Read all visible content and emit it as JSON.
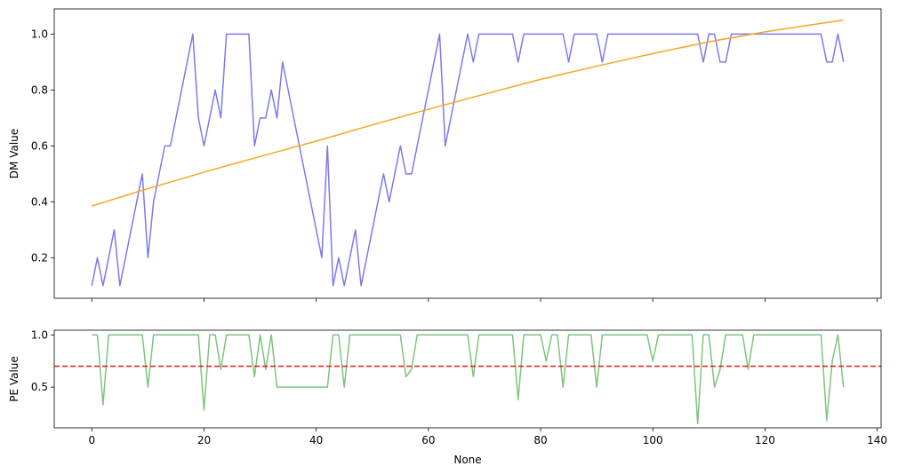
{
  "chart_data": [
    {
      "type": "line",
      "title": "",
      "xlabel": "",
      "ylabel": "DM Value",
      "xlim": [
        -6.7,
        140.7
      ],
      "ylim": [
        0.055,
        1.09
      ],
      "xticks": [
        0,
        20,
        40,
        60,
        80,
        100,
        120,
        140
      ],
      "yticks": [
        0.2,
        0.4,
        0.6,
        0.8,
        1.0
      ],
      "ytick_labels": [
        "0.2",
        "0.4",
        "0.6",
        "0.8",
        "1.0"
      ],
      "show_xtick_labels": false,
      "grid": false,
      "series": [
        {
          "color": "#7b7bf0",
          "x": [
            0,
            1,
            2,
            3,
            4,
            5,
            6,
            7,
            8,
            9,
            10,
            11,
            12,
            13,
            14,
            15,
            16,
            17,
            18,
            19,
            20,
            21,
            22,
            23,
            24,
            25,
            26,
            27,
            28,
            29,
            30,
            31,
            32,
            33,
            34,
            35,
            36,
            37,
            38,
            39,
            40,
            41,
            42,
            43,
            44,
            45,
            46,
            47,
            48,
            49,
            50,
            51,
            52,
            53,
            54,
            55,
            56,
            57,
            58,
            59,
            60,
            61,
            62,
            63,
            64,
            65,
            66,
            67,
            68,
            69,
            70,
            71,
            72,
            73,
            74,
            75,
            76,
            77,
            78,
            79,
            80,
            81,
            82,
            83,
            84,
            85,
            86,
            87,
            88,
            89,
            90,
            91,
            92,
            93,
            94,
            95,
            96,
            97,
            98,
            99,
            100,
            101,
            102,
            103,
            104,
            105,
            106,
            107,
            108,
            109,
            110,
            111,
            112,
            113,
            114,
            115,
            116,
            117,
            118,
            119,
            120,
            121,
            122,
            123,
            124,
            125,
            126,
            127,
            128,
            129,
            130,
            131,
            132,
            133,
            134
          ],
          "y": [
            0.1,
            0.2,
            0.1,
            0.2,
            0.3,
            0.1,
            0.2,
            0.3,
            0.4,
            0.5,
            0.2,
            0.4,
            0.5,
            0.6,
            0.6,
            0.7,
            0.8,
            0.9,
            1.0,
            0.7,
            0.6,
            0.7,
            0.8,
            0.7,
            1.0,
            1.0,
            1.0,
            1.0,
            1.0,
            0.6,
            0.7,
            0.7,
            0.8,
            0.7,
            0.9,
            0.8,
            0.7,
            0.6,
            0.5,
            0.4,
            0.3,
            0.2,
            0.6,
            0.1,
            0.2,
            0.1,
            0.2,
            0.3,
            0.1,
            0.2,
            0.3,
            0.4,
            0.5,
            0.4,
            0.5,
            0.6,
            0.5,
            0.5,
            0.6,
            0.7,
            0.8,
            0.9,
            1.0,
            0.6,
            0.7,
            0.8,
            0.9,
            1.0,
            0.9,
            1.0,
            1.0,
            1.0,
            1.0,
            1.0,
            1.0,
            1.0,
            0.9,
            1.0,
            1.0,
            1.0,
            1.0,
            1.0,
            1.0,
            1.0,
            1.0,
            0.9,
            1.0,
            1.0,
            1.0,
            1.0,
            1.0,
            0.9,
            1.0,
            1.0,
            1.0,
            1.0,
            1.0,
            1.0,
            1.0,
            1.0,
            1.0,
            1.0,
            1.0,
            1.0,
            1.0,
            1.0,
            1.0,
            1.0,
            1.0,
            0.9,
            1.0,
            1.0,
            0.9,
            0.9,
            1.0,
            1.0,
            1.0,
            1.0,
            1.0,
            1.0,
            1.0,
            1.0,
            1.0,
            1.0,
            1.0,
            1.0,
            1.0,
            1.0,
            1.0,
            1.0,
            1.0,
            0.9,
            0.9,
            1.0,
            0.9
          ]
        },
        {
          "color": "#f5a623",
          "x": [
            0,
            10,
            20,
            30,
            40,
            50,
            60,
            70,
            80,
            90,
            100,
            110,
            120,
            134
          ],
          "y": [
            0.385,
            0.447,
            0.506,
            0.562,
            0.617,
            0.675,
            0.731,
            0.785,
            0.838,
            0.885,
            0.93,
            0.972,
            1.008,
            1.05
          ]
        }
      ]
    },
    {
      "type": "line",
      "title": "",
      "xlabel": "None",
      "ylabel": "PE Value",
      "xlim": [
        -6.7,
        140.7
      ],
      "ylim": [
        0.11,
        1.045
      ],
      "xticks": [
        0,
        20,
        40,
        60,
        80,
        100,
        120,
        140
      ],
      "xtick_labels": [
        "0",
        "20",
        "40",
        "60",
        "80",
        "100",
        "120",
        "140"
      ],
      "yticks": [
        0.5,
        1.0
      ],
      "ytick_labels": [
        "0.5",
        "1.0"
      ],
      "grid": false,
      "threshold": {
        "y": 0.7,
        "color": "#e31a1c",
        "style": "dashed"
      },
      "series": [
        {
          "color": "#7ec47e",
          "x": [
            0,
            1,
            2,
            3,
            4,
            5,
            6,
            7,
            8,
            9,
            10,
            11,
            12,
            13,
            14,
            15,
            16,
            17,
            18,
            19,
            20,
            21,
            22,
            23,
            24,
            25,
            26,
            27,
            28,
            29,
            30,
            31,
            32,
            33,
            34,
            35,
            36,
            37,
            38,
            39,
            40,
            41,
            42,
            43,
            44,
            45,
            46,
            47,
            48,
            49,
            50,
            51,
            52,
            53,
            54,
            55,
            56,
            57,
            58,
            59,
            60,
            61,
            62,
            63,
            64,
            65,
            66,
            67,
            68,
            69,
            70,
            71,
            72,
            73,
            74,
            75,
            76,
            77,
            78,
            79,
            80,
            81,
            82,
            83,
            84,
            85,
            86,
            87,
            88,
            89,
            90,
            91,
            92,
            93,
            94,
            95,
            96,
            97,
            98,
            99,
            100,
            101,
            102,
            103,
            104,
            105,
            106,
            107,
            108,
            109,
            110,
            111,
            112,
            113,
            114,
            115,
            116,
            117,
            118,
            119,
            120,
            121,
            122,
            123,
            124,
            125,
            126,
            127,
            128,
            129,
            130,
            131,
            132,
            133,
            134
          ],
          "y": [
            1.0,
            1.0,
            0.33,
            1.0,
            1.0,
            1.0,
            1.0,
            1.0,
            1.0,
            1.0,
            0.5,
            1.0,
            1.0,
            1.0,
            1.0,
            1.0,
            1.0,
            1.0,
            1.0,
            1.0,
            0.28,
            1.0,
            1.0,
            0.67,
            1.0,
            1.0,
            1.0,
            1.0,
            1.0,
            0.6,
            1.0,
            0.67,
            1.0,
            0.5,
            0.5,
            0.5,
            0.5,
            0.5,
            0.5,
            0.5,
            0.5,
            0.5,
            0.5,
            1.0,
            1.0,
            0.5,
            1.0,
            1.0,
            1.0,
            1.0,
            1.0,
            1.0,
            1.0,
            1.0,
            1.0,
            1.0,
            0.6,
            0.67,
            1.0,
            1.0,
            1.0,
            1.0,
            1.0,
            1.0,
            1.0,
            1.0,
            1.0,
            1.0,
            0.6,
            1.0,
            1.0,
            1.0,
            1.0,
            1.0,
            1.0,
            1.0,
            0.38,
            1.0,
            1.0,
            1.0,
            1.0,
            0.75,
            1.0,
            1.0,
            0.5,
            1.0,
            1.0,
            1.0,
            1.0,
            1.0,
            0.5,
            1.0,
            1.0,
            1.0,
            1.0,
            1.0,
            1.0,
            1.0,
            1.0,
            1.0,
            0.75,
            1.0,
            1.0,
            1.0,
            1.0,
            1.0,
            1.0,
            1.0,
            0.15,
            1.0,
            1.0,
            0.5,
            0.67,
            1.0,
            1.0,
            1.0,
            1.0,
            0.67,
            1.0,
            1.0,
            1.0,
            1.0,
            1.0,
            1.0,
            1.0,
            1.0,
            1.0,
            1.0,
            1.0,
            1.0,
            1.0,
            0.18,
            0.75,
            1.0,
            0.5
          ]
        }
      ]
    }
  ]
}
